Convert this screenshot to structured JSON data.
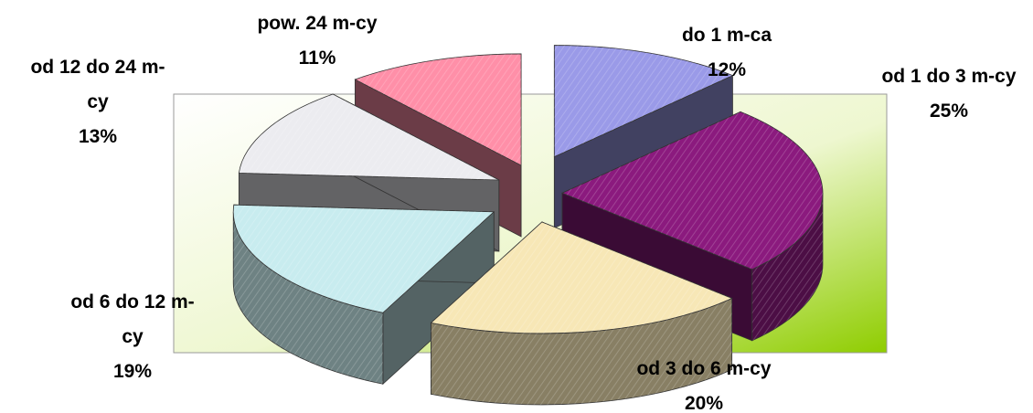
{
  "chart_data": {
    "type": "pie",
    "title": "",
    "slices": [
      {
        "label_lines": [
          "do 1 m-ca"
        ],
        "percent_text": "12%",
        "value": 12,
        "color": "#9a9ae8"
      },
      {
        "label_lines": [
          "od 1 do 3 m-cy"
        ],
        "percent_text": "25%",
        "value": 25,
        "color": "#8b1a7e"
      },
      {
        "label_lines": [
          "od 3 do 6 m-cy"
        ],
        "percent_text": "20%",
        "value": 20,
        "color": "#f7e7b6"
      },
      {
        "label_lines": [
          "od 6 do 12 m-",
          "cy"
        ],
        "percent_text": "19%",
        "value": 19,
        "color": "#c8ecef"
      },
      {
        "label_lines": [
          "od 12 do 24 m-",
          "cy"
        ],
        "percent_text": "13%",
        "value": 13,
        "color": "#ececf0"
      },
      {
        "label_lines": [
          "pow. 24 m-cy"
        ],
        "percent_text": "11%",
        "value": 11,
        "color": "#ff8fa8"
      }
    ],
    "style": "3d-exploded-pie",
    "legend": "none",
    "plot_background": "gradient-white-to-green"
  }
}
